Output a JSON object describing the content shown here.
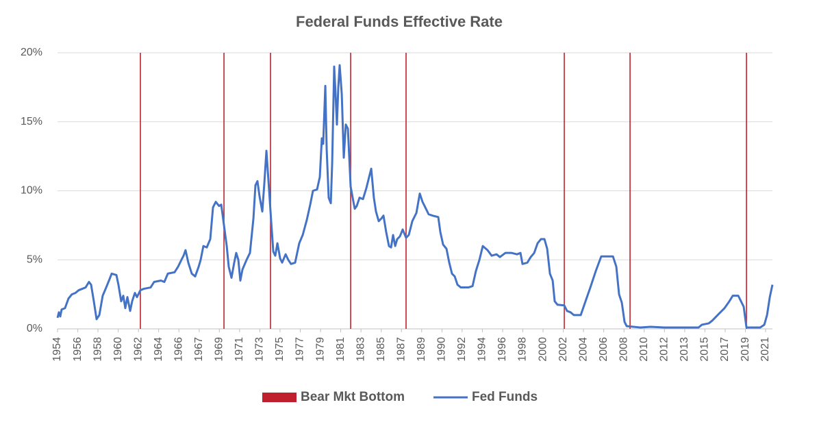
{
  "chart_data": {
    "type": "line",
    "title": "Federal Funds Effective Rate",
    "xlim": [
      1954.5,
      2022.23
    ],
    "xticks": [
      {
        "value": 1954.5,
        "label": "1954"
      },
      {
        "value": 1956.42,
        "label": "1956"
      },
      {
        "value": 1958.33,
        "label": "1958"
      },
      {
        "value": 1960.25,
        "label": "1960"
      },
      {
        "value": 1962.17,
        "label": "1962"
      },
      {
        "value": 1964.08,
        "label": "1964"
      },
      {
        "value": 1966.0,
        "label": "1966"
      },
      {
        "value": 1967.92,
        "label": "1967"
      },
      {
        "value": 1969.83,
        "label": "1969"
      },
      {
        "value": 1971.75,
        "label": "1971"
      },
      {
        "value": 1973.67,
        "label": "1973"
      },
      {
        "value": 1975.58,
        "label": "1975"
      },
      {
        "value": 1977.5,
        "label": "1977"
      },
      {
        "value": 1979.42,
        "label": "1979"
      },
      {
        "value": 1981.33,
        "label": "1981"
      },
      {
        "value": 1983.25,
        "label": "1983"
      },
      {
        "value": 1985.17,
        "label": "1985"
      },
      {
        "value": 1987.08,
        "label": "1987"
      },
      {
        "value": 1989.0,
        "label": "1989"
      },
      {
        "value": 1990.92,
        "label": "1990"
      },
      {
        "value": 1992.83,
        "label": "1992"
      },
      {
        "value": 1994.75,
        "label": "1994"
      },
      {
        "value": 1996.67,
        "label": "1996"
      },
      {
        "value": 1998.58,
        "label": "1998"
      },
      {
        "value": 2000.5,
        "label": "2000"
      },
      {
        "value": 2002.42,
        "label": "2002"
      },
      {
        "value": 2004.33,
        "label": "2004"
      },
      {
        "value": 2006.25,
        "label": "2006"
      },
      {
        "value": 2008.17,
        "label": "2008"
      },
      {
        "value": 2010.08,
        "label": "2010"
      },
      {
        "value": 2012.0,
        "label": "2012"
      },
      {
        "value": 2013.92,
        "label": "2013"
      },
      {
        "value": 2015.83,
        "label": "2015"
      },
      {
        "value": 2017.75,
        "label": "2017"
      },
      {
        "value": 2019.67,
        "label": "2019"
      },
      {
        "value": 2021.58,
        "label": "2021"
      }
    ],
    "ylim": [
      0,
      20
    ],
    "yticks": [
      {
        "value": 0,
        "label": "0%"
      },
      {
        "value": 5,
        "label": "5%"
      },
      {
        "value": 10,
        "label": "10%"
      },
      {
        "value": 15,
        "label": "15%"
      },
      {
        "value": 20,
        "label": "20%"
      }
    ],
    "grid": true,
    "legend": "bottom",
    "series": [
      {
        "name": "Bear Mkt Bottom",
        "type": "bar",
        "color": "#c0202e",
        "x": [
          1962.35,
          1970.27,
          1974.68,
          1982.27,
          1987.52,
          2002.51,
          2008.74,
          2019.77
        ],
        "values": [
          20,
          20,
          20,
          20,
          20,
          20,
          20,
          20
        ]
      },
      {
        "name": "Fed Funds",
        "type": "line",
        "color": "#4472c4",
        "x": [
          1954.5,
          1954.63,
          1954.76,
          1954.89,
          1955.21,
          1955.54,
          1955.86,
          1956.19,
          1956.51,
          1956.84,
          1957.16,
          1957.48,
          1957.68,
          1957.94,
          1958.2,
          1958.46,
          1958.78,
          1959.11,
          1959.43,
          1959.63,
          1960.08,
          1960.27,
          1960.53,
          1960.73,
          1960.92,
          1961.12,
          1961.38,
          1961.57,
          1961.83,
          1962.03,
          1962.35,
          1962.67,
          1963.32,
          1963.65,
          1964.3,
          1964.62,
          1964.95,
          1965.59,
          1965.92,
          1966.24,
          1966.44,
          1966.63,
          1966.89,
          1967.22,
          1967.54,
          1967.87,
          1968.06,
          1968.32,
          1968.64,
          1968.97,
          1969.23,
          1969.49,
          1969.81,
          1970.01,
          1970.27,
          1970.53,
          1970.72,
          1970.98,
          1971.24,
          1971.43,
          1971.63,
          1971.82,
          1972.02,
          1972.41,
          1972.73,
          1973.06,
          1973.25,
          1973.44,
          1973.64,
          1973.9,
          1974.09,
          1974.29,
          1974.55,
          1974.74,
          1974.94,
          1975.13,
          1975.33,
          1975.59,
          1975.78,
          1976.11,
          1976.36,
          1976.62,
          1977.01,
          1977.4,
          1977.73,
          1978.12,
          1978.44,
          1978.7,
          1979.09,
          1979.35,
          1979.54,
          1979.67,
          1979.87,
          1980.0,
          1980.19,
          1980.39,
          1980.52,
          1980.71,
          1980.84,
          1980.97,
          1981.1,
          1981.23,
          1981.43,
          1981.62,
          1981.81,
          1982.01,
          1982.27,
          1982.46,
          1982.66,
          1982.85,
          1983.11,
          1983.44,
          1983.76,
          1984.02,
          1984.22,
          1984.47,
          1984.67,
          1984.93,
          1985.19,
          1985.38,
          1985.64,
          1985.9,
          1986.1,
          1986.29,
          1986.49,
          1986.68,
          1986.94,
          1987.2,
          1987.52,
          1987.78,
          1988.11,
          1988.5,
          1988.82,
          1989.08,
          1989.34,
          1989.66,
          1990.05,
          1990.57,
          1990.77,
          1991.03,
          1991.35,
          1991.61,
          1991.87,
          1992.13,
          1992.39,
          1992.71,
          1993.04,
          1993.43,
          1993.82,
          1994.14,
          1994.47,
          1994.79,
          1995.24,
          1995.63,
          1996.09,
          1996.41,
          1996.93,
          1997.52,
          1998.03,
          1998.36,
          1998.55,
          1999.01,
          1999.33,
          1999.66,
          1999.98,
          2000.3,
          2000.63,
          2000.89,
          2001.15,
          2001.41,
          2001.6,
          2001.86,
          2002.51,
          2002.77,
          2003.1,
          2003.42,
          2004.07,
          2004.52,
          2004.98,
          2005.5,
          2006.01,
          2007.12,
          2007.44,
          2007.7,
          2007.96,
          2008.22,
          2008.42,
          2009.06,
          2009.71,
          2010.69,
          2011.98,
          2013.93,
          2015.23,
          2015.55,
          2016.2,
          2016.53,
          2017.17,
          2017.69,
          2018.15,
          2018.47,
          2018.99,
          2019.25,
          2019.51,
          2019.77,
          2020.42,
          2021.07,
          2021.46,
          2021.72,
          2021.98,
          2022.23
        ],
        "values": [
          0.8,
          1.2,
          0.9,
          1.4,
          1.5,
          2.2,
          2.5,
          2.6,
          2.8,
          2.9,
          3.0,
          3.4,
          3.2,
          2.0,
          0.7,
          1.0,
          2.4,
          3.0,
          3.6,
          4.0,
          3.9,
          3.2,
          2.0,
          2.4,
          1.5,
          2.3,
          1.3,
          2.0,
          2.6,
          2.3,
          2.8,
          2.9,
          3.0,
          3.4,
          3.5,
          3.4,
          4.0,
          4.1,
          4.5,
          5.0,
          5.3,
          5.7,
          4.8,
          4.0,
          3.8,
          4.5,
          5.0,
          6.0,
          5.9,
          6.5,
          8.8,
          9.2,
          8.9,
          9.0,
          7.5,
          6.0,
          4.5,
          3.7,
          4.8,
          5.5,
          5.0,
          3.5,
          4.3,
          5.0,
          5.5,
          8.0,
          10.4,
          10.7,
          9.6,
          8.5,
          10.5,
          12.9,
          10.0,
          7.8,
          5.6,
          5.3,
          6.2,
          5.1,
          4.8,
          5.4,
          5.0,
          4.7,
          4.8,
          6.2,
          6.8,
          7.9,
          9.0,
          10.0,
          10.1,
          11.0,
          13.8,
          13.4,
          17.6,
          13.0,
          9.5,
          9.1,
          12.0,
          19.0,
          17.0,
          14.8,
          17.5,
          19.1,
          17.0,
          12.4,
          14.8,
          14.5,
          10.3,
          9.5,
          8.7,
          8.9,
          9.5,
          9.4,
          10.2,
          11.0,
          11.6,
          9.5,
          8.5,
          7.8,
          8.0,
          8.2,
          7.0,
          6.0,
          5.9,
          6.8,
          6.0,
          6.5,
          6.7,
          7.2,
          6.6,
          6.8,
          7.8,
          8.4,
          9.8,
          9.2,
          8.8,
          8.3,
          8.2,
          8.1,
          7.0,
          6.1,
          5.8,
          4.8,
          4.0,
          3.8,
          3.2,
          3.0,
          3.0,
          3.0,
          3.1,
          4.2,
          5.0,
          6.0,
          5.7,
          5.3,
          5.4,
          5.2,
          5.5,
          5.5,
          5.4,
          5.5,
          4.7,
          4.8,
          5.2,
          5.5,
          6.2,
          6.5,
          6.5,
          5.8,
          4.0,
          3.5,
          2.0,
          1.75,
          1.7,
          1.3,
          1.2,
          1.0,
          1.0,
          2.0,
          3.0,
          4.2,
          5.25,
          5.25,
          4.5,
          2.5,
          1.9,
          0.5,
          0.2,
          0.15,
          0.1,
          0.15,
          0.1,
          0.1,
          0.1,
          0.3,
          0.4,
          0.6,
          1.1,
          1.5,
          2.0,
          2.4,
          2.4,
          2.0,
          1.6,
          0.1,
          0.1,
          0.1,
          0.3,
          1.0,
          2.3,
          3.2
        ]
      }
    ]
  }
}
